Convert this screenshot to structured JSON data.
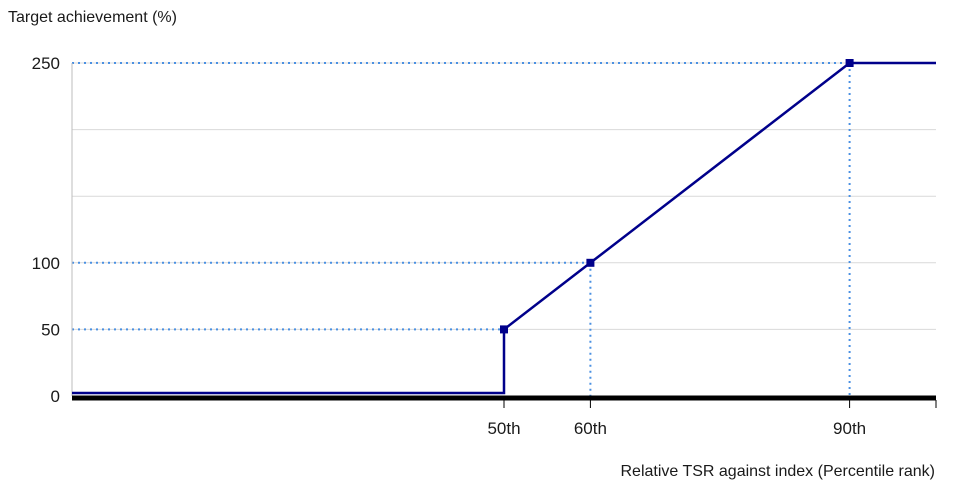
{
  "chart_data": {
    "type": "line",
    "ylabel": "Target achievement (%)",
    "xlabel": "Relative TSR against index (Percentile rank)",
    "xlim": [
      0,
      100
    ],
    "ylim": [
      0,
      250
    ],
    "y_ticks": [
      {
        "value": 0,
        "label": "0"
      },
      {
        "value": 50,
        "label": "50"
      },
      {
        "value": 100,
        "label": "100"
      },
      {
        "value": 250,
        "label": "250"
      }
    ],
    "x_ticks": [
      {
        "value": 50,
        "label": "50th"
      },
      {
        "value": 60,
        "label": "60th"
      },
      {
        "value": 90,
        "label": "90th"
      }
    ],
    "gridlines_y": [
      50,
      100,
      150,
      200,
      250
    ],
    "series": [
      {
        "points": [
          {
            "x": 0,
            "y": 0
          },
          {
            "x": 50,
            "y": 0
          },
          {
            "x": 50,
            "y": 50
          },
          {
            "x": 60,
            "y": 100
          },
          {
            "x": 90,
            "y": 250
          },
          {
            "x": 100,
            "y": 250
          }
        ]
      }
    ],
    "markers": [
      {
        "x": 50,
        "y": 50
      },
      {
        "x": 60,
        "y": 100
      },
      {
        "x": 90,
        "y": 250
      }
    ],
    "colors": {
      "line": "#00008b",
      "guide": "#4a90e2",
      "grid": "#d9d9d9",
      "axis": "#000000"
    }
  }
}
